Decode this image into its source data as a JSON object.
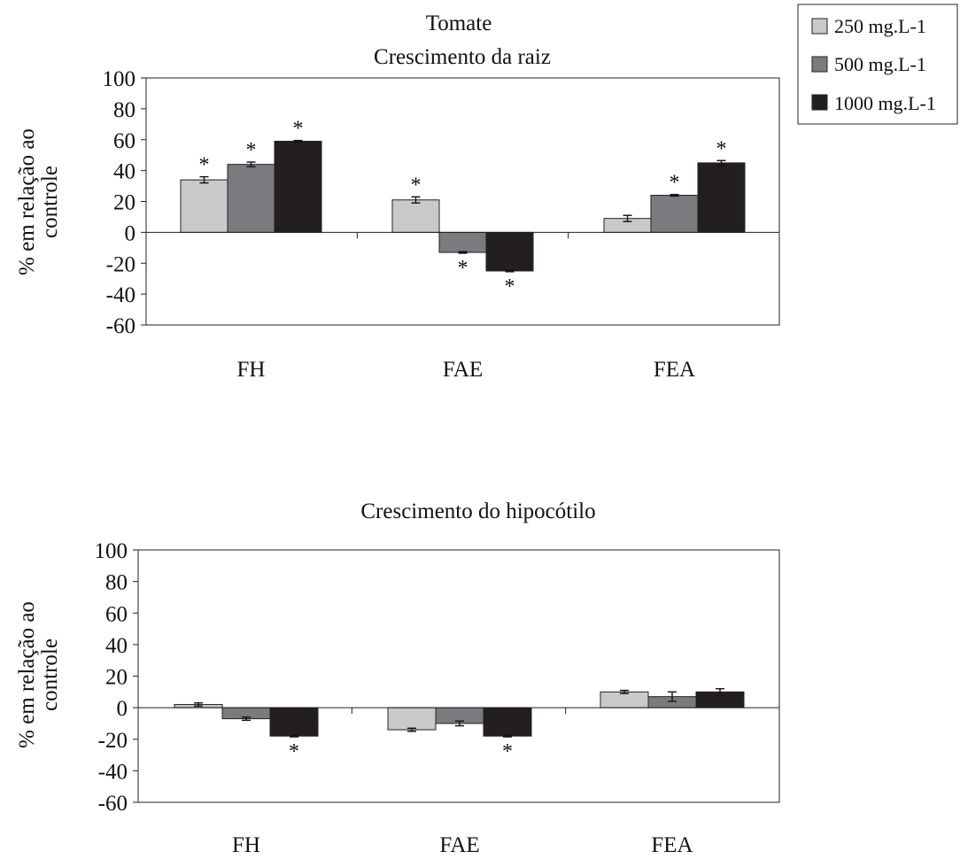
{
  "figure": {
    "legend": [
      {
        "label": "250 mg.L-1",
        "color": "#c8c9cb"
      },
      {
        "label": "500 mg.L-1",
        "color": "#7a7b7e"
      },
      {
        "label": "1000 mg.L-1",
        "color": "#231f20"
      }
    ]
  },
  "chart_data": [
    {
      "type": "bar",
      "title": "Tomate",
      "subtitle": "Crescimento da raiz",
      "xlabel": "",
      "ylabel": "% em  relação ao controle",
      "ylim": [
        -60,
        100
      ],
      "yticks": [
        100,
        80,
        60,
        40,
        20,
        0,
        -20,
        -40,
        -60
      ],
      "categories": [
        "FH",
        "FAE",
        "FEA"
      ],
      "grid": false,
      "legend_position": "top-right",
      "series": [
        {
          "name": "250 mg.L-1",
          "values": [
            34,
            21,
            9
          ],
          "errors": [
            2,
            2,
            2
          ],
          "significant": [
            true,
            true,
            false
          ]
        },
        {
          "name": "500 mg.L-1",
          "values": [
            44,
            -13,
            24
          ],
          "errors": [
            1.5,
            0.5,
            0.5
          ],
          "significant": [
            true,
            true,
            true
          ]
        },
        {
          "name": "1000 mg.L-1",
          "values": [
            59,
            -25,
            45
          ],
          "errors": [
            0.5,
            0.5,
            1.5
          ],
          "significant": [
            true,
            true,
            true
          ]
        }
      ],
      "significance_marker": "*"
    },
    {
      "type": "bar",
      "title": "",
      "subtitle": "Crescimento do hipocótilo",
      "xlabel": "",
      "ylabel": "% em relação ao controle",
      "ylim": [
        -60,
        100
      ],
      "yticks": [
        100,
        80,
        60,
        40,
        20,
        0,
        -20,
        -40,
        -60
      ],
      "categories": [
        "FH",
        "FAE",
        "FEA"
      ],
      "grid": false,
      "series": [
        {
          "name": "250 mg.L-1",
          "values": [
            2,
            -14,
            10
          ],
          "errors": [
            1,
            1,
            1
          ],
          "significant": [
            false,
            false,
            false
          ]
        },
        {
          "name": "500 mg.L-1",
          "values": [
            -7,
            -10,
            7
          ],
          "errors": [
            1,
            1.5,
            3
          ],
          "significant": [
            false,
            false,
            false
          ]
        },
        {
          "name": "1000 mg.L-1",
          "values": [
            -18,
            -18,
            10
          ],
          "errors": [
            0.5,
            0.5,
            2
          ],
          "significant": [
            true,
            true,
            false
          ]
        }
      ],
      "significance_marker": "*"
    }
  ]
}
